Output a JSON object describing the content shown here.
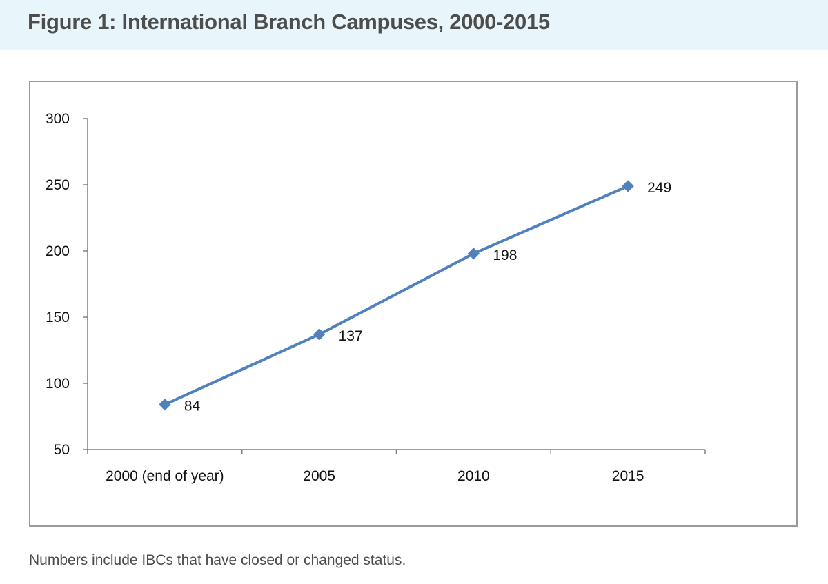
{
  "figure": {
    "title": "Figure 1: International Branch Campuses, 2000-2015",
    "footnote": "Numbers include IBCs that have closed or changed status."
  },
  "colors": {
    "header_band": "#e8f5fb",
    "series_line": "#4f81bd",
    "axis": "#7f7f7f",
    "frame_border": "#9a9a9a"
  },
  "chart_data": {
    "type": "line",
    "title": "",
    "xlabel": "",
    "ylabel": "",
    "categories": [
      "2000 (end of year)",
      "2005",
      "2010",
      "2015"
    ],
    "series": [
      {
        "values": [
          84,
          137,
          198,
          249
        ],
        "marker": "diamond"
      }
    ],
    "data_labels": [
      "84",
      "137",
      "198",
      "249"
    ],
    "ylim": [
      50,
      300
    ],
    "yticks": [
      50,
      100,
      150,
      200,
      250,
      300
    ],
    "grid": false,
    "legend": "none"
  }
}
